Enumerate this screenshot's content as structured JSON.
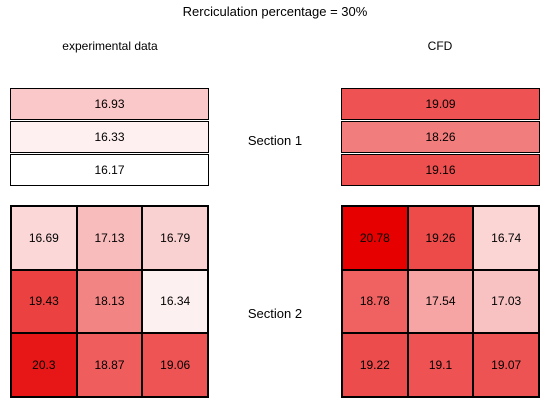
{
  "title": "Rerciculation percentage = 30%",
  "panels": {
    "experimental": "experimental data",
    "cfd": "CFD"
  },
  "sections": {
    "section1": "Section 1",
    "section2": "Section 2"
  },
  "chart_data": {
    "type": "heatmap",
    "title": "Rerciculation percentage = 30%",
    "color_scale": {
      "low": "#ffffff",
      "high": "#e60000",
      "vmin": 16.17,
      "vmax": 20.78
    },
    "experimental": {
      "label": "experimental data",
      "section1": [
        16.93,
        16.33,
        16.17
      ],
      "section2": [
        [
          16.69,
          17.13,
          16.79
        ],
        [
          19.43,
          18.13,
          16.34
        ],
        [
          20.3,
          18.87,
          19.06
        ]
      ]
    },
    "cfd": {
      "label": "CFD",
      "section1": [
        19.09,
        18.26,
        19.16
      ],
      "section2": [
        [
          20.78,
          19.26,
          16.74
        ],
        [
          18.78,
          17.54,
          17.03
        ],
        [
          19.22,
          19.1,
          19.07
        ]
      ]
    }
  }
}
